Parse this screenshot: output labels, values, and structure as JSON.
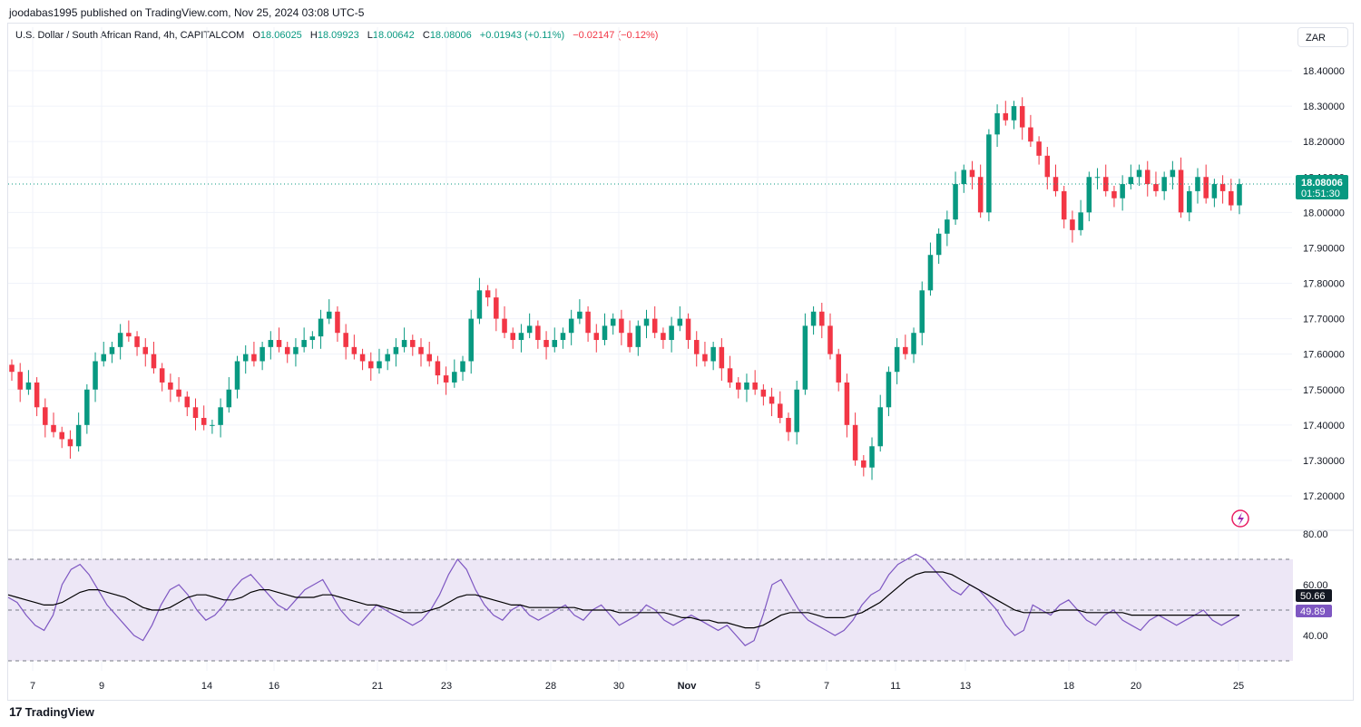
{
  "publisher": "joodabas1995 published on TradingView.com, Nov 25, 2024 03:08 UTC-5",
  "legend": {
    "symbol": "U.S. Dollar / South African Rand, 4h, CAPITALCOM",
    "o_label": "O",
    "o_value": "18.06025",
    "h_label": "H",
    "h_value": "18.09923",
    "l_label": "L",
    "l_value": "18.00642",
    "c_label": "C",
    "c_value": "18.08006",
    "change_pos": "+0.01943 (+0.11%)",
    "change_neg": "−0.02147 (−0.12%)"
  },
  "currency": "ZAR",
  "price_tag": {
    "price": "18.08006",
    "countdown": "01:51:30"
  },
  "rsi_tags": {
    "rsi": "50.66",
    "ma": "49.89"
  },
  "footer_brand": "TradingView",
  "colors": {
    "up": "#089981",
    "down": "#f23645",
    "rsi": "#7e57c2",
    "rsi_ma": "#000000",
    "band_fill": "#ede7f6",
    "grid": "#f0f3fa"
  },
  "chart_data": [
    {
      "type": "candlestick",
      "title": "U.S. Dollar / South African Rand, 4h, CAPITALCOM",
      "y_ticks": [
        "17.20000",
        "17.30000",
        "17.40000",
        "17.50000",
        "17.60000",
        "17.70000",
        "17.80000",
        "17.90000",
        "18.00000",
        "18.10000",
        "18.20000",
        "18.30000",
        "18.40000"
      ],
      "ylim": [
        17.11,
        18.45
      ],
      "x_ticks": [
        "7",
        "9",
        "14",
        "16",
        "21",
        "23",
        "28",
        "30",
        "Nov",
        "5",
        "7",
        "11",
        "13",
        "18",
        "20",
        "25"
      ],
      "last_price": 18.08006,
      "close_series": [
        17.55,
        17.5,
        17.52,
        17.45,
        17.4,
        17.38,
        17.36,
        17.34,
        17.4,
        17.5,
        17.58,
        17.6,
        17.62,
        17.66,
        17.65,
        17.62,
        17.6,
        17.56,
        17.52,
        17.5,
        17.48,
        17.45,
        17.42,
        17.4,
        17.4,
        17.45,
        17.5,
        17.58,
        17.6,
        17.58,
        17.62,
        17.64,
        17.62,
        17.6,
        17.62,
        17.64,
        17.65,
        17.7,
        17.72,
        17.66,
        17.62,
        17.6,
        17.58,
        17.56,
        17.58,
        17.6,
        17.62,
        17.64,
        17.62,
        17.6,
        17.58,
        17.54,
        17.52,
        17.55,
        17.58,
        17.7,
        17.78,
        17.76,
        17.7,
        17.66,
        17.64,
        17.66,
        17.68,
        17.64,
        17.62,
        17.64,
        17.66,
        17.7,
        17.72,
        17.66,
        17.64,
        17.68,
        17.7,
        17.66,
        17.62,
        17.68,
        17.7,
        17.66,
        17.64,
        17.68,
        17.7,
        17.64,
        17.6,
        17.58,
        17.62,
        17.56,
        17.52,
        17.5,
        17.52,
        17.5,
        17.48,
        17.46,
        17.42,
        17.38,
        17.5,
        17.68,
        17.72,
        17.68,
        17.6,
        17.52,
        17.4,
        17.3,
        17.28,
        17.34,
        17.45,
        17.55,
        17.62,
        17.6,
        17.66,
        17.78,
        17.88,
        17.94,
        17.98,
        18.08,
        18.12,
        18.1,
        18.0,
        18.22,
        18.28,
        18.26,
        18.3,
        18.24,
        18.2,
        18.16,
        18.1,
        18.06,
        17.98,
        17.95,
        18.0,
        18.1,
        18.1,
        18.06,
        18.04,
        18.08,
        18.1,
        18.12,
        18.08,
        18.06,
        18.1,
        18.12,
        18.0,
        18.06,
        18.1,
        18.04,
        18.08,
        18.06,
        18.02,
        18.08
      ]
    },
    {
      "type": "line",
      "title": "RSI",
      "y_ticks": [
        "40.00",
        "60.00",
        "80.00"
      ],
      "ylim": [
        30,
        82
      ],
      "upper_band": 70,
      "middle_band": 50,
      "lower_band": 30,
      "series": [
        {
          "values": [
            55,
            53,
            48,
            44,
            42,
            48,
            60,
            66,
            68,
            64,
            58,
            52,
            48,
            44,
            40,
            38,
            44,
            52,
            58,
            60,
            56,
            50,
            46,
            48,
            52,
            58,
            62,
            64,
            60,
            56,
            52,
            50,
            54,
            58,
            60,
            62,
            56,
            50,
            46,
            44,
            48,
            52,
            50,
            48,
            46,
            44,
            46,
            50,
            56,
            64,
            70,
            66,
            58,
            52,
            48,
            46,
            50,
            52,
            48,
            46,
            48,
            50,
            52,
            48,
            46,
            50,
            52,
            48,
            44,
            46,
            48,
            52,
            50,
            46,
            44,
            46,
            48,
            46,
            44,
            42,
            44,
            40,
            36,
            38,
            48,
            60,
            62,
            56,
            50,
            46,
            44,
            42,
            40,
            42,
            46,
            52,
            56,
            58,
            64,
            68,
            70,
            72,
            70,
            66,
            62,
            58,
            56,
            60,
            58,
            54,
            50,
            44,
            40,
            42,
            52,
            50,
            48,
            52,
            54,
            50,
            46,
            44,
            48,
            50,
            46,
            44,
            42,
            46,
            48,
            46,
            44,
            46,
            48,
            50,
            46,
            44,
            46,
            48
          ]
        },
        {
          "values": [
            56,
            55,
            54,
            53,
            52,
            52,
            53,
            55,
            57,
            58,
            58,
            57,
            56,
            55,
            53,
            51,
            50,
            50,
            51,
            53,
            55,
            56,
            56,
            55,
            54,
            54,
            55,
            57,
            58,
            58,
            57,
            56,
            55,
            55,
            55,
            56,
            56,
            55,
            54,
            53,
            52,
            52,
            51,
            50,
            49,
            49,
            49,
            50,
            51,
            53,
            55,
            56,
            56,
            55,
            54,
            53,
            52,
            52,
            51,
            51,
            51,
            51,
            51,
            51,
            50,
            50,
            50,
            50,
            49,
            49,
            49,
            49,
            49,
            49,
            48,
            47,
            47,
            46,
            46,
            45,
            45,
            44,
            43,
            43,
            44,
            46,
            48,
            49,
            49,
            49,
            48,
            47,
            47,
            47,
            48,
            49,
            51,
            53,
            56,
            59,
            62,
            64,
            65,
            65,
            65,
            64,
            62,
            60,
            58,
            56,
            54,
            52,
            50,
            49,
            49,
            49,
            49,
            50,
            50,
            50,
            49,
            49,
            49,
            49,
            49,
            48,
            48,
            48,
            48,
            48,
            48,
            48,
            48,
            48,
            48,
            48,
            48,
            48
          ]
        }
      ]
    }
  ]
}
